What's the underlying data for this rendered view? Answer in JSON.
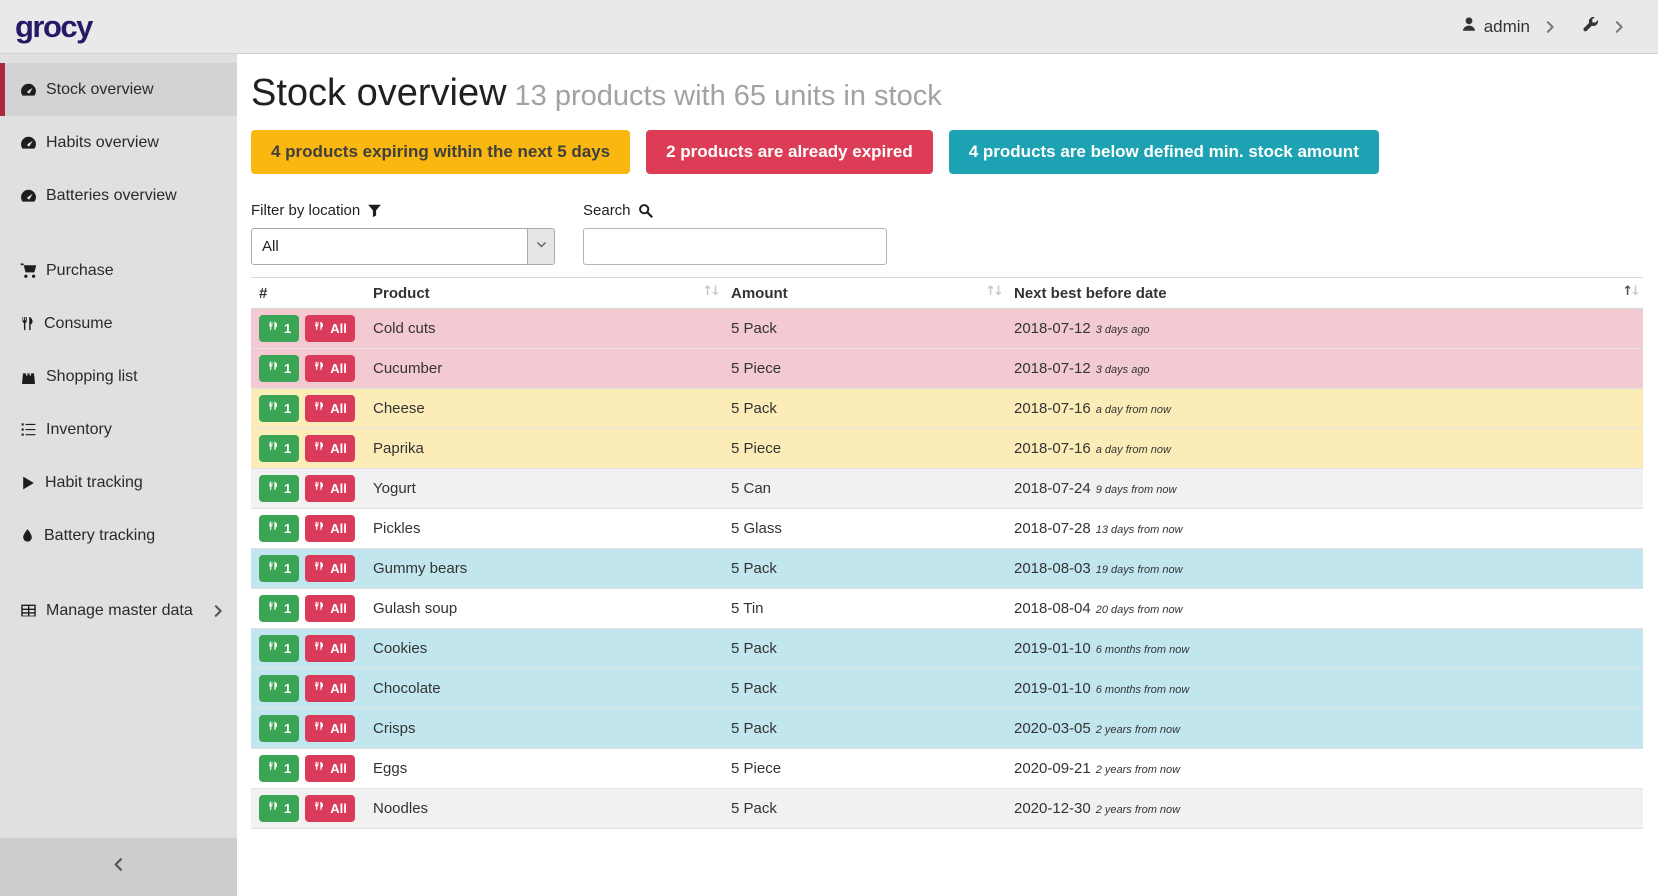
{
  "navbar": {
    "logo": "grocy",
    "user_label": "admin",
    "user_icon": "user",
    "settings_icon": "wrench"
  },
  "sidebar": {
    "groups": [
      [
        {
          "label": "Stock overview",
          "icon": "tachometer",
          "active": true
        },
        {
          "label": "Habits overview",
          "icon": "tachometer"
        },
        {
          "label": "Batteries overview",
          "icon": "tachometer"
        }
      ],
      [
        {
          "label": "Purchase",
          "icon": "shopping-cart"
        },
        {
          "label": "Consume",
          "icon": "utensils"
        },
        {
          "label": "Shopping list",
          "icon": "shopping-bag"
        },
        {
          "label": "Inventory",
          "icon": "list"
        },
        {
          "label": "Habit tracking",
          "icon": "play"
        },
        {
          "label": "Battery tracking",
          "icon": "tint"
        }
      ],
      [
        {
          "label": "Manage master data",
          "icon": "table",
          "trailing_icon": "chevron-right"
        }
      ]
    ],
    "collapse_icon": "chevron-left"
  },
  "page": {
    "title": "Stock overview",
    "subtitle": "13 products with 65 units in stock"
  },
  "alerts": [
    {
      "label": "4 products expiring within the next 5 days",
      "bg": "#f9b70f",
      "fg": "#3f3f3f"
    },
    {
      "label": "2 products are already expired",
      "bg": "#dc3c55",
      "fg": "#ffffff"
    },
    {
      "label": "4 products are below defined min. stock amount",
      "bg": "#1da2b4",
      "fg": "#ffffff"
    }
  ],
  "filters": {
    "location_label": "Filter by location",
    "location_icon": "filter",
    "location_value": "All",
    "search_label": "Search",
    "search_icon": "search",
    "search_value": ""
  },
  "table": {
    "consume_one_label": "1",
    "consume_all_label": "All",
    "consume_icon": "utensils",
    "columns": [
      {
        "label": "#",
        "sort": null
      },
      {
        "label": "Product",
        "sort": "none"
      },
      {
        "label": "Amount",
        "sort": "none"
      },
      {
        "label": "Next best before date",
        "sort": "asc"
      }
    ],
    "status_colors": {
      "expired": "#f3c9d2",
      "expiring": "#fcedb8",
      "belowmin": "#c2e6ee",
      "stripe": "#f1f1f1",
      "none": "#ffffff"
    },
    "rows": [
      {
        "product": "Cold cuts",
        "amount": "5 Pack",
        "date": "2018-07-12",
        "relative": "3 days ago",
        "status": "expired"
      },
      {
        "product": "Cucumber",
        "amount": "5 Piece",
        "date": "2018-07-12",
        "relative": "3 days ago",
        "status": "expired"
      },
      {
        "product": "Cheese",
        "amount": "5 Pack",
        "date": "2018-07-16",
        "relative": "a day from now",
        "status": "expiring"
      },
      {
        "product": "Paprika",
        "amount": "5 Piece",
        "date": "2018-07-16",
        "relative": "a day from now",
        "status": "expiring"
      },
      {
        "product": "Yogurt",
        "amount": "5 Can",
        "date": "2018-07-24",
        "relative": "9 days from now",
        "status": "stripe"
      },
      {
        "product": "Pickles",
        "amount": "5 Glass",
        "date": "2018-07-28",
        "relative": "13 days from now",
        "status": "none"
      },
      {
        "product": "Gummy bears",
        "amount": "5 Pack",
        "date": "2018-08-03",
        "relative": "19 days from now",
        "status": "belowmin"
      },
      {
        "product": "Gulash soup",
        "amount": "5 Tin",
        "date": "2018-08-04",
        "relative": "20 days from now",
        "status": "none"
      },
      {
        "product": "Cookies",
        "amount": "5 Pack",
        "date": "2019-01-10",
        "relative": "6 months from now",
        "status": "belowmin"
      },
      {
        "product": "Chocolate",
        "amount": "5 Pack",
        "date": "2019-01-10",
        "relative": "6 months from now",
        "status": "belowmin"
      },
      {
        "product": "Crisps",
        "amount": "5 Pack",
        "date": "2020-03-05",
        "relative": "2 years from now",
        "status": "belowmin"
      },
      {
        "product": "Eggs",
        "amount": "5 Piece",
        "date": "2020-09-21",
        "relative": "2 years from now",
        "status": "none"
      },
      {
        "product": "Noodles",
        "amount": "5 Pack",
        "date": "2020-12-30",
        "relative": "2 years from now",
        "status": "stripe"
      }
    ]
  }
}
